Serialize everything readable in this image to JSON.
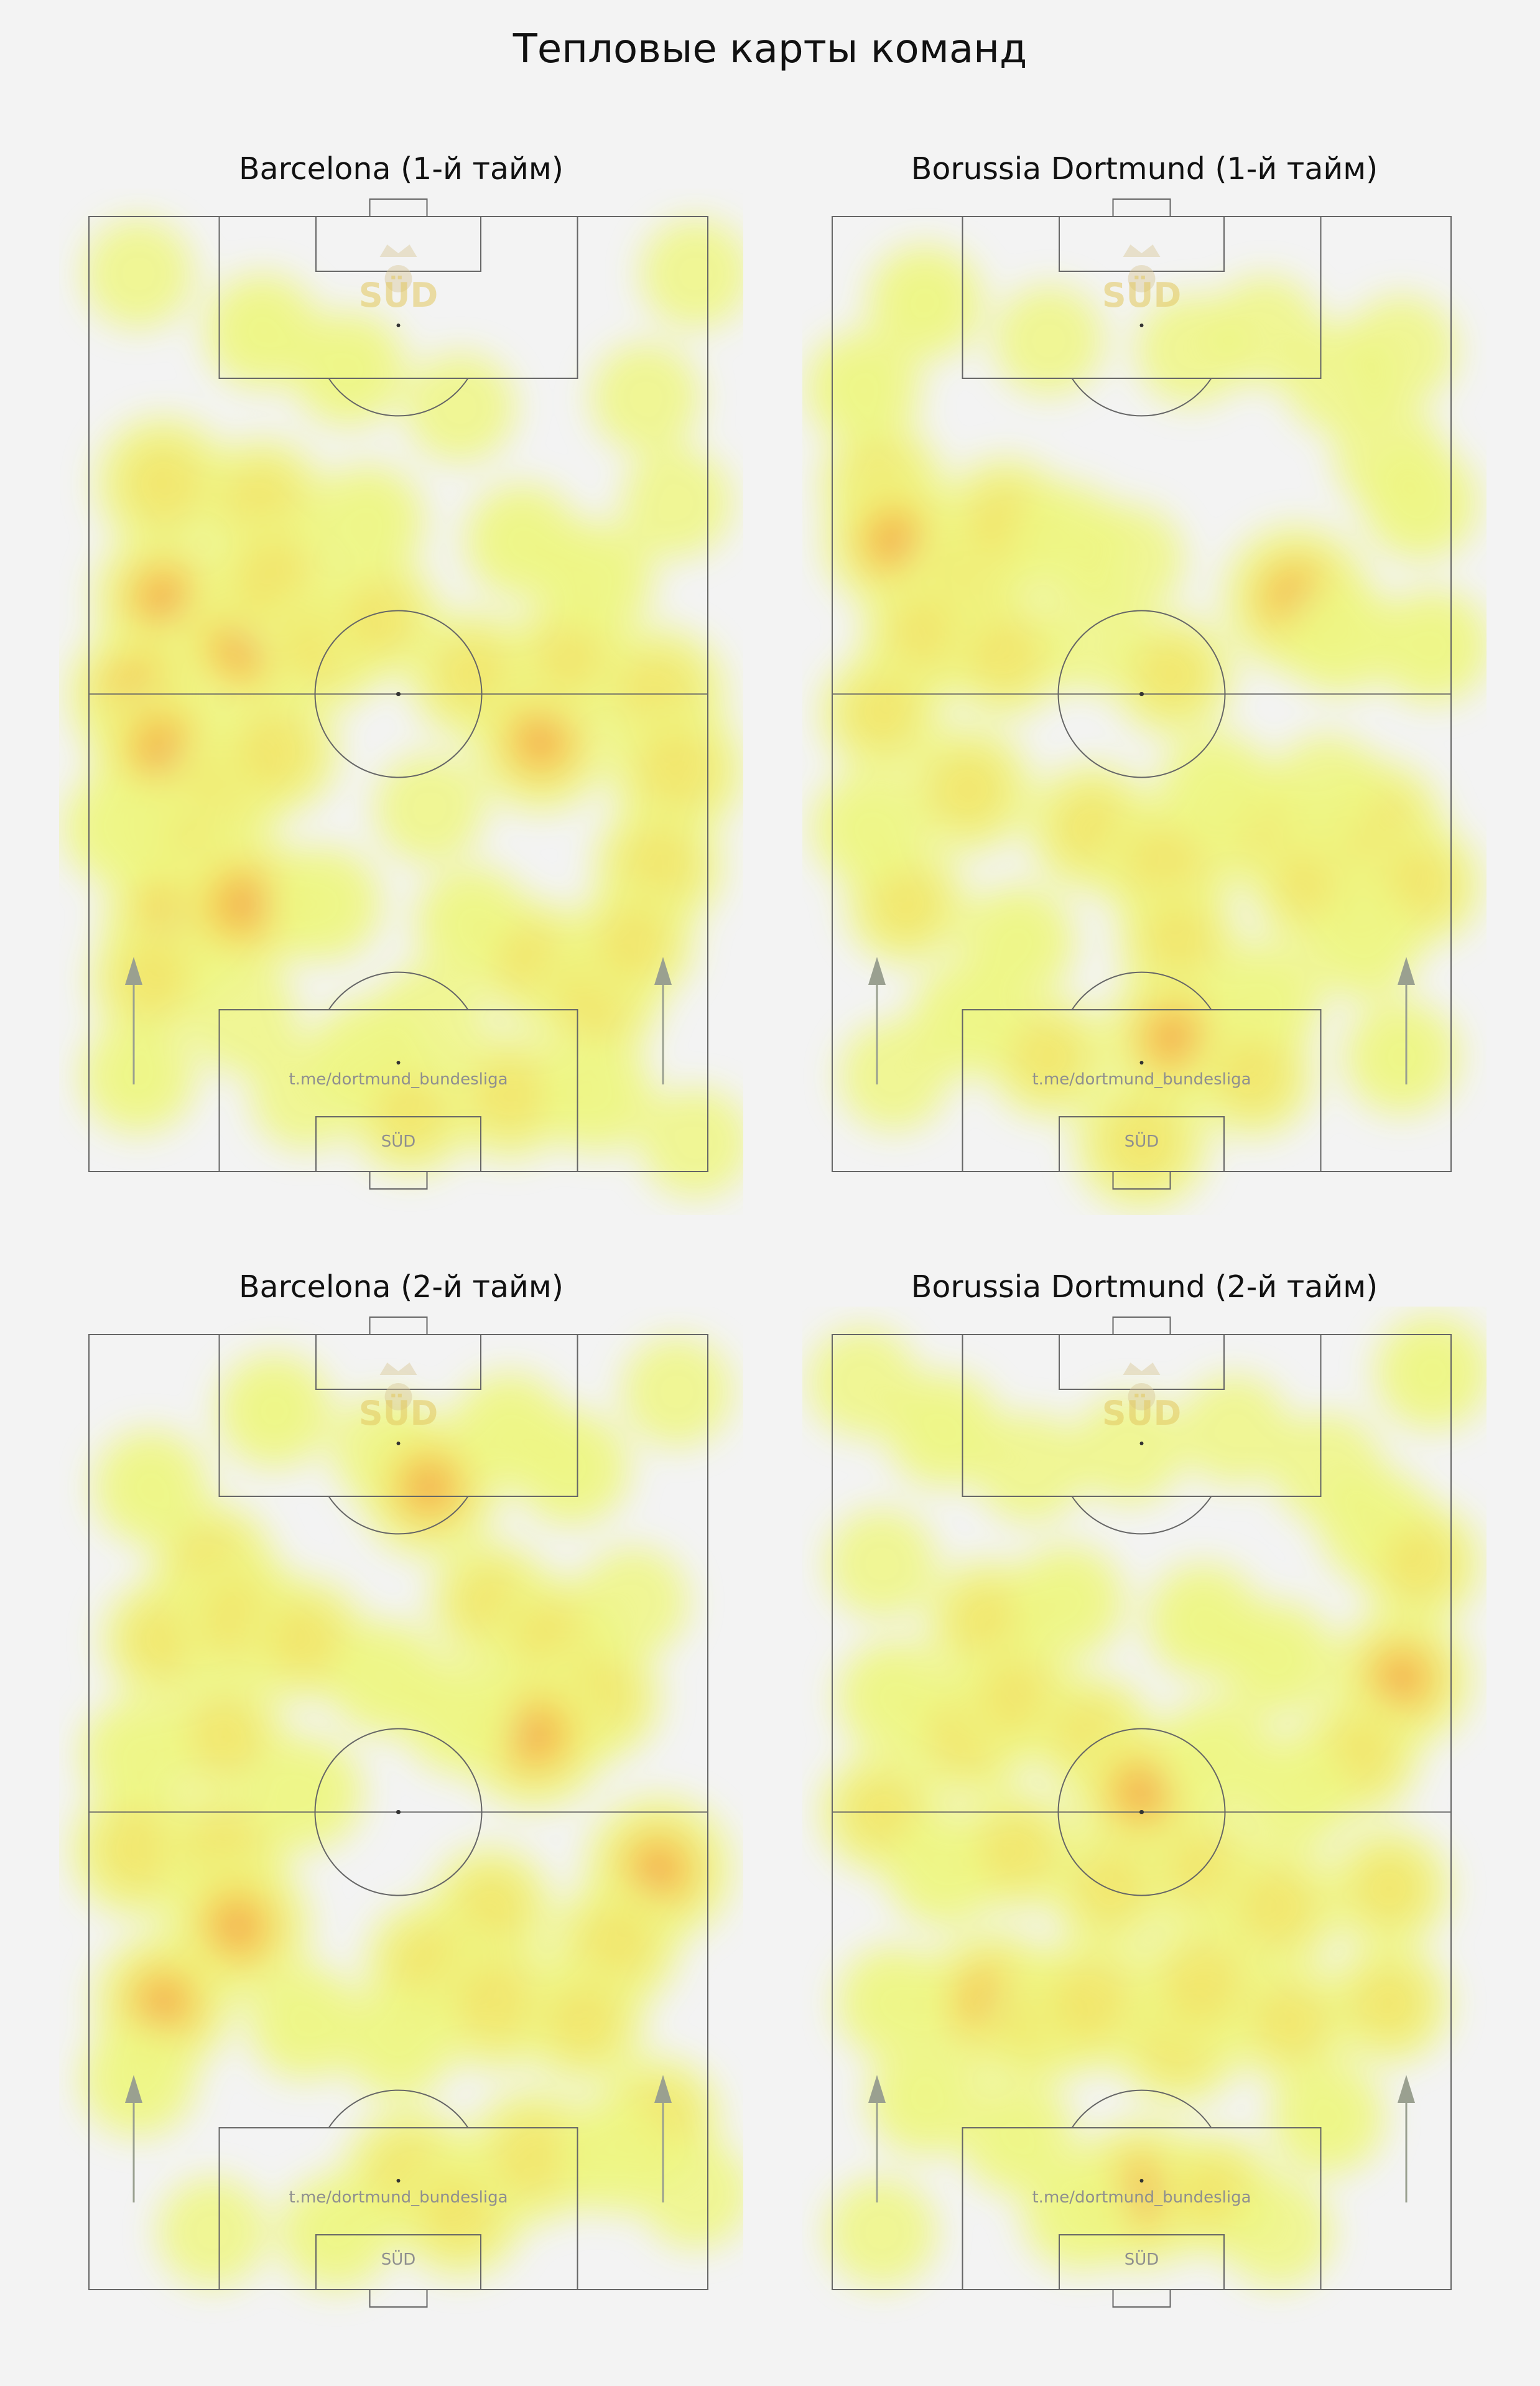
{
  "title": "Тепловые карты команд",
  "watermark": {
    "channel": "t.me/dortmund_bundesliga",
    "badge": "SÜD"
  },
  "colors": {
    "background": "#f3f3f3",
    "pitch_lines": "#666666",
    "heat_low": "#eef77a",
    "heat_mid": "#f6d23c",
    "heat_high": "#f29a4a",
    "arrow": "#9aa090"
  },
  "chart_data": [
    {
      "type": "heatmap",
      "title": "Barcelona (1-й тайм)",
      "hotspots": [
        [
          0.08,
          0.94,
          0.4
        ],
        [
          0.98,
          0.94,
          0.4
        ],
        [
          0.28,
          0.88,
          0.5
        ],
        [
          0.42,
          0.84,
          0.5
        ],
        [
          0.6,
          0.8,
          0.4
        ],
        [
          0.9,
          0.81,
          0.4
        ],
        [
          0.12,
          0.72,
          0.8
        ],
        [
          0.28,
          0.7,
          0.7
        ],
        [
          0.45,
          0.68,
          0.5
        ],
        [
          0.7,
          0.66,
          0.5
        ],
        [
          0.95,
          0.7,
          0.4
        ],
        [
          0.12,
          0.6,
          0.9
        ],
        [
          0.25,
          0.55,
          1.0
        ],
        [
          0.3,
          0.62,
          0.8
        ],
        [
          0.38,
          0.55,
          0.7
        ],
        [
          0.47,
          0.58,
          0.6
        ],
        [
          0.62,
          0.52,
          0.7
        ],
        [
          0.73,
          0.45,
          0.9
        ],
        [
          0.78,
          0.54,
          0.6
        ],
        [
          0.92,
          0.5,
          0.8
        ],
        [
          0.95,
          0.42,
          0.8
        ],
        [
          0.82,
          0.62,
          0.5
        ],
        [
          0.08,
          0.5,
          0.9
        ],
        [
          0.12,
          0.44,
          1.0
        ],
        [
          0.22,
          0.4,
          0.6
        ],
        [
          0.3,
          0.44,
          0.7
        ],
        [
          0.15,
          0.33,
          0.7
        ],
        [
          0.05,
          0.36,
          0.5
        ],
        [
          0.14,
          0.26,
          1.0
        ],
        [
          0.25,
          0.28,
          1.0
        ],
        [
          0.38,
          0.28,
          0.5
        ],
        [
          0.1,
          0.2,
          0.6
        ],
        [
          0.25,
          0.16,
          0.4
        ],
        [
          0.62,
          0.26,
          0.5
        ],
        [
          0.72,
          0.22,
          0.6
        ],
        [
          0.82,
          0.18,
          0.7
        ],
        [
          0.92,
          0.32,
          0.7
        ],
        [
          0.88,
          0.24,
          0.6
        ],
        [
          0.55,
          0.38,
          0.4
        ],
        [
          0.55,
          0.16,
          0.4
        ],
        [
          0.45,
          0.12,
          0.5
        ],
        [
          0.35,
          0.08,
          0.4
        ],
        [
          0.52,
          0.06,
          0.6
        ],
        [
          0.68,
          0.08,
          0.7
        ],
        [
          0.82,
          0.08,
          0.5
        ],
        [
          0.08,
          0.1,
          0.5
        ],
        [
          0.98,
          0.03,
          0.4
        ]
      ]
    },
    {
      "type": "heatmap",
      "title": "Borussia Dortmund (1-й тайм)",
      "hotspots": [
        [
          0.15,
          0.91,
          0.5
        ],
        [
          0.35,
          0.87,
          0.4
        ],
        [
          0.58,
          0.86,
          0.4
        ],
        [
          0.7,
          0.88,
          0.4
        ],
        [
          0.82,
          0.83,
          0.4
        ],
        [
          0.92,
          0.86,
          0.4
        ],
        [
          0.05,
          0.82,
          0.5
        ],
        [
          0.9,
          0.75,
          0.4
        ],
        [
          0.95,
          0.7,
          0.5
        ],
        [
          0.08,
          0.72,
          0.6
        ],
        [
          0.1,
          0.66,
          0.9
        ],
        [
          0.22,
          0.62,
          0.7
        ],
        [
          0.28,
          0.68,
          0.7
        ],
        [
          0.38,
          0.66,
          0.5
        ],
        [
          0.48,
          0.64,
          0.4
        ],
        [
          0.15,
          0.56,
          0.7
        ],
        [
          0.28,
          0.54,
          0.6
        ],
        [
          0.42,
          0.56,
          0.4
        ],
        [
          0.55,
          0.52,
          0.6
        ],
        [
          0.75,
          0.6,
          1.0
        ],
        [
          0.82,
          0.56,
          0.5
        ],
        [
          0.97,
          0.55,
          0.5
        ],
        [
          0.08,
          0.48,
          0.6
        ],
        [
          0.22,
          0.4,
          0.7
        ],
        [
          0.42,
          0.36,
          0.7
        ],
        [
          0.54,
          0.32,
          0.8
        ],
        [
          0.56,
          0.24,
          0.6
        ],
        [
          0.7,
          0.36,
          0.6
        ],
        [
          0.78,
          0.3,
          0.7
        ],
        [
          0.88,
          0.36,
          0.8
        ],
        [
          0.95,
          0.3,
          0.6
        ],
        [
          0.3,
          0.24,
          0.5
        ],
        [
          0.12,
          0.28,
          0.6
        ],
        [
          0.06,
          0.36,
          0.5
        ],
        [
          0.62,
          0.4,
          0.5
        ],
        [
          0.86,
          0.24,
          0.5
        ],
        [
          0.7,
          0.18,
          0.5
        ],
        [
          0.22,
          0.16,
          0.5
        ],
        [
          0.35,
          0.12,
          0.6
        ],
        [
          0.55,
          0.14,
          0.9
        ],
        [
          0.68,
          0.1,
          0.6
        ],
        [
          0.5,
          0.03,
          0.8
        ],
        [
          0.1,
          0.1,
          0.4
        ],
        [
          0.92,
          0.12,
          0.5
        ],
        [
          0.8,
          0.4,
          0.4
        ]
      ]
    },
    {
      "type": "heatmap",
      "title": "Barcelona (2-й тайм)",
      "hotspots": [
        [
          0.3,
          0.92,
          0.5
        ],
        [
          0.48,
          0.88,
          0.4
        ],
        [
          0.55,
          0.84,
          0.9
        ],
        [
          0.68,
          0.9,
          0.5
        ],
        [
          0.78,
          0.86,
          0.5
        ],
        [
          0.95,
          0.94,
          0.4
        ],
        [
          0.1,
          0.84,
          0.5
        ],
        [
          0.2,
          0.76,
          0.6
        ],
        [
          0.12,
          0.68,
          0.6
        ],
        [
          0.25,
          0.7,
          0.8
        ],
        [
          0.35,
          0.68,
          0.6
        ],
        [
          0.48,
          0.64,
          0.5
        ],
        [
          0.65,
          0.72,
          0.6
        ],
        [
          0.75,
          0.68,
          0.7
        ],
        [
          0.82,
          0.62,
          0.7
        ],
        [
          0.88,
          0.72,
          0.4
        ],
        [
          0.72,
          0.58,
          1.0
        ],
        [
          0.6,
          0.6,
          0.5
        ],
        [
          0.22,
          0.58,
          0.6
        ],
        [
          0.08,
          0.56,
          0.5
        ],
        [
          0.35,
          0.52,
          0.5
        ],
        [
          0.08,
          0.46,
          0.8
        ],
        [
          0.22,
          0.46,
          0.7
        ],
        [
          0.24,
          0.38,
          1.0
        ],
        [
          0.92,
          0.44,
          1.0
        ],
        [
          0.85,
          0.36,
          0.7
        ],
        [
          0.65,
          0.4,
          0.6
        ],
        [
          0.55,
          0.34,
          0.7
        ],
        [
          0.66,
          0.3,
          0.8
        ],
        [
          0.5,
          0.26,
          0.5
        ],
        [
          0.12,
          0.3,
          0.9
        ],
        [
          0.08,
          0.22,
          0.5
        ],
        [
          0.35,
          0.28,
          0.5
        ],
        [
          0.8,
          0.28,
          0.6
        ],
        [
          0.92,
          0.18,
          0.6
        ],
        [
          0.52,
          0.12,
          0.8
        ],
        [
          0.6,
          0.08,
          0.7
        ],
        [
          0.72,
          0.14,
          0.8
        ],
        [
          0.85,
          0.14,
          0.5
        ],
        [
          0.4,
          0.06,
          0.5
        ],
        [
          0.2,
          0.06,
          0.4
        ],
        [
          0.98,
          0.1,
          0.4
        ]
      ]
    },
    {
      "type": "heatmap",
      "title": "Borussia Dortmund (2-й тайм)",
      "hotspots": [
        [
          0.05,
          0.95,
          0.4
        ],
        [
          0.18,
          0.9,
          0.5
        ],
        [
          0.32,
          0.86,
          0.4
        ],
        [
          0.48,
          0.88,
          0.4
        ],
        [
          0.65,
          0.9,
          0.4
        ],
        [
          0.8,
          0.86,
          0.4
        ],
        [
          0.97,
          0.96,
          0.5
        ],
        [
          0.88,
          0.8,
          0.5
        ],
        [
          0.95,
          0.76,
          0.6
        ],
        [
          0.08,
          0.76,
          0.4
        ],
        [
          0.25,
          0.7,
          0.6
        ],
        [
          0.38,
          0.72,
          0.5
        ],
        [
          0.6,
          0.7,
          0.5
        ],
        [
          0.72,
          0.66,
          0.5
        ],
        [
          0.92,
          0.64,
          0.9
        ],
        [
          0.85,
          0.56,
          0.6
        ],
        [
          0.1,
          0.62,
          0.5
        ],
        [
          0.22,
          0.58,
          0.7
        ],
        [
          0.3,
          0.62,
          0.6
        ],
        [
          0.42,
          0.58,
          0.6
        ],
        [
          0.5,
          0.52,
          0.9
        ],
        [
          0.62,
          0.56,
          0.5
        ],
        [
          0.75,
          0.52,
          0.5
        ],
        [
          0.08,
          0.5,
          0.6
        ],
        [
          0.18,
          0.44,
          0.5
        ],
        [
          0.3,
          0.46,
          0.6
        ],
        [
          0.45,
          0.42,
          0.6
        ],
        [
          0.6,
          0.44,
          0.6
        ],
        [
          0.72,
          0.4,
          0.7
        ],
        [
          0.9,
          0.42,
          0.6
        ],
        [
          0.26,
          0.3,
          1.0
        ],
        [
          0.34,
          0.28,
          0.6
        ],
        [
          0.42,
          0.3,
          0.8
        ],
        [
          0.56,
          0.26,
          0.7
        ],
        [
          0.6,
          0.32,
          0.8
        ],
        [
          0.74,
          0.28,
          0.6
        ],
        [
          0.9,
          0.3,
          0.6
        ],
        [
          0.1,
          0.3,
          0.5
        ],
        [
          0.15,
          0.2,
          0.5
        ],
        [
          0.5,
          0.1,
          1.0
        ],
        [
          0.62,
          0.1,
          0.6
        ],
        [
          0.4,
          0.08,
          0.5
        ],
        [
          0.72,
          0.06,
          0.4
        ],
        [
          0.08,
          0.06,
          0.4
        ],
        [
          0.3,
          0.16,
          0.5
        ],
        [
          0.8,
          0.18,
          0.5
        ]
      ]
    }
  ]
}
